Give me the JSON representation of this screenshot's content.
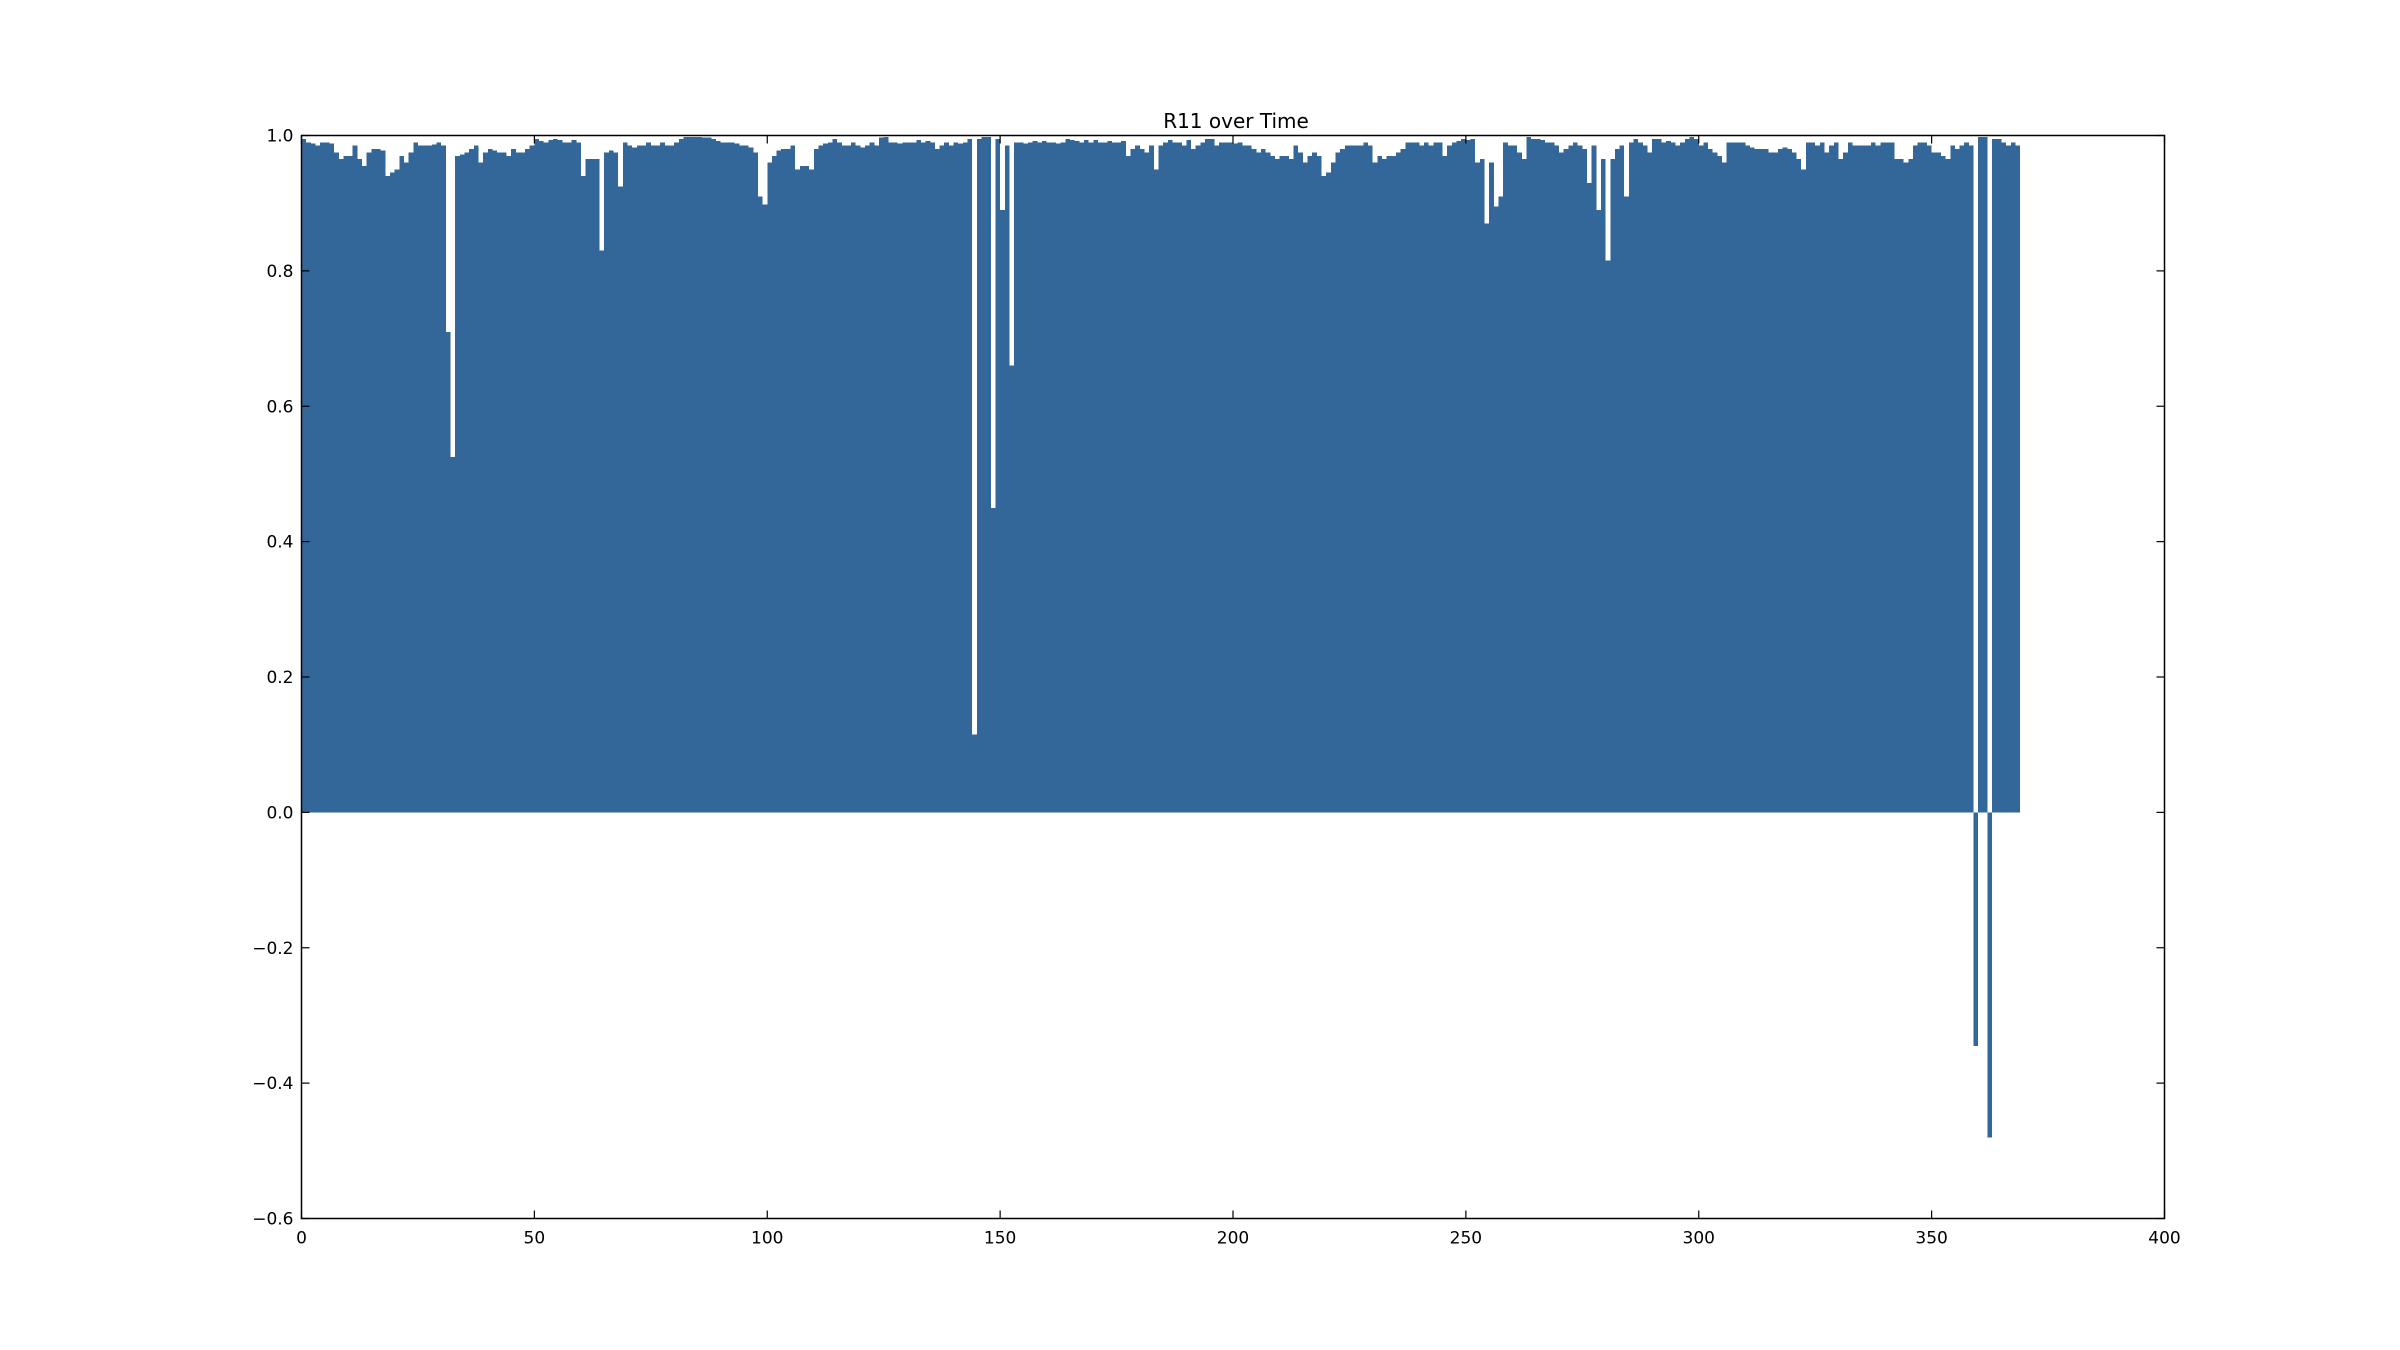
{
  "chart_data": {
    "type": "bar",
    "title": "R11 over Time",
    "xlabel": "",
    "ylabel": "",
    "xlim": [
      0,
      400
    ],
    "ylim": [
      -0.6,
      1.0
    ],
    "grid": false,
    "bar_width": 1,
    "bar_color": "#336699",
    "x_ticks": [
      0,
      50,
      100,
      150,
      200,
      250,
      300,
      350,
      400
    ],
    "y_ticks": [
      1.0,
      0.8,
      0.6,
      0.4,
      0.2,
      0.0,
      -0.2,
      -0.4,
      -0.6
    ],
    "x_tick_labels": [
      "0",
      "50",
      "100",
      "150",
      "200",
      "250",
      "300",
      "350",
      "400"
    ],
    "y_tick_labels": [
      "1.0",
      "0.8",
      "0.6",
      "0.4",
      "0.2",
      "0.0",
      "−0.2",
      "−0.4",
      "−0.6"
    ],
    "values": [
      0.995,
      0.99,
      0.988,
      0.985,
      0.99,
      0.99,
      0.988,
      0.975,
      0.965,
      0.97,
      0.97,
      0.985,
      0.965,
      0.955,
      0.975,
      0.98,
      0.98,
      0.978,
      0.94,
      0.945,
      0.95,
      0.97,
      0.96,
      0.975,
      0.99,
      0.985,
      0.985,
      0.985,
      0.987,
      0.99,
      0.985,
      0.71,
      0.525,
      0.97,
      0.972,
      0.975,
      0.98,
      0.985,
      0.96,
      0.975,
      0.98,
      0.978,
      0.975,
      0.975,
      0.97,
      0.98,
      0.975,
      0.975,
      0.98,
      0.985,
      0.995,
      0.992,
      0.99,
      0.993,
      0.995,
      0.993,
      0.99,
      0.99,
      0.993,
      0.99,
      0.94,
      0.965,
      0.965,
      0.965,
      0.83,
      0.975,
      0.978,
      0.975,
      0.925,
      0.99,
      0.985,
      0.982,
      0.985,
      0.985,
      0.99,
      0.985,
      0.985,
      0.99,
      0.985,
      0.985,
      0.99,
      0.995,
      0.998,
      0.998,
      0.998,
      0.998,
      0.997,
      0.997,
      0.995,
      0.992,
      0.99,
      0.99,
      0.99,
      0.988,
      0.985,
      0.985,
      0.982,
      0.975,
      0.91,
      0.898,
      0.96,
      0.97,
      0.978,
      0.98,
      0.98,
      0.985,
      0.95,
      0.955,
      0.955,
      0.95,
      0.98,
      0.985,
      0.988,
      0.99,
      0.995,
      0.99,
      0.985,
      0.985,
      0.99,
      0.985,
      0.982,
      0.985,
      0.99,
      0.985,
      0.997,
      0.998,
      0.99,
      0.99,
      0.988,
      0.99,
      0.99,
      0.99,
      0.993,
      0.99,
      0.992,
      0.99,
      0.98,
      0.985,
      0.99,
      0.985,
      0.99,
      0.988,
      0.99,
      0.995,
      0.115,
      0.995,
      0.998,
      0.998,
      0.45,
      0.995,
      0.89,
      0.985,
      0.66,
      0.99,
      0.99,
      0.988,
      0.99,
      0.992,
      0.99,
      0.992,
      0.99,
      0.99,
      0.988,
      0.99,
      0.995,
      0.993,
      0.992,
      0.99,
      0.993,
      0.99,
      0.993,
      0.99,
      0.99,
      0.992,
      0.99,
      0.99,
      0.992,
      0.97,
      0.98,
      0.985,
      0.98,
      0.975,
      0.985,
      0.95,
      0.985,
      0.99,
      0.993,
      0.99,
      0.99,
      0.985,
      0.993,
      0.98,
      0.985,
      0.99,
      0.995,
      0.995,
      0.985,
      0.99,
      0.99,
      0.99,
      0.988,
      0.99,
      0.985,
      0.985,
      0.98,
      0.975,
      0.98,
      0.975,
      0.97,
      0.965,
      0.97,
      0.97,
      0.965,
      0.985,
      0.975,
      0.96,
      0.97,
      0.975,
      0.97,
      0.94,
      0.945,
      0.96,
      0.975,
      0.98,
      0.985,
      0.985,
      0.985,
      0.985,
      0.99,
      0.985,
      0.96,
      0.97,
      0.965,
      0.97,
      0.97,
      0.975,
      0.98,
      0.99,
      0.99,
      0.99,
      0.985,
      0.99,
      0.985,
      0.99,
      0.99,
      0.97,
      0.985,
      0.99,
      0.992,
      0.995,
      0.993,
      0.995,
      0.96,
      0.965,
      0.87,
      0.96,
      0.895,
      0.91,
      0.99,
      0.985,
      0.985,
      0.975,
      0.965,
      0.998,
      0.995,
      0.995,
      0.993,
      0.99,
      0.99,
      0.985,
      0.975,
      0.98,
      0.985,
      0.99,
      0.985,
      0.98,
      0.93,
      0.985,
      0.89,
      0.965,
      0.815,
      0.965,
      0.98,
      0.985,
      0.91,
      0.99,
      0.995,
      0.99,
      0.985,
      0.975,
      0.995,
      0.995,
      0.99,
      0.992,
      0.99,
      0.985,
      0.99,
      0.995,
      0.998,
      0.995,
      0.985,
      0.99,
      0.98,
      0.975,
      0.97,
      0.96,
      0.99,
      0.99,
      0.99,
      0.99,
      0.985,
      0.982,
      0.98,
      0.98,
      0.98,
      0.975,
      0.975,
      0.98,
      0.982,
      0.98,
      0.975,
      0.965,
      0.95,
      0.99,
      0.99,
      0.985,
      0.99,
      0.975,
      0.985,
      0.99,
      0.965,
      0.975,
      0.99,
      0.985,
      0.985,
      0.985,
      0.985,
      0.99,
      0.985,
      0.99,
      0.99,
      0.99,
      0.965,
      0.965,
      0.96,
      0.965,
      0.985,
      0.99,
      0.99,
      0.985,
      0.975,
      0.975,
      0.97,
      0.965,
      0.985,
      0.98,
      0.985,
      0.99,
      0.985,
      -0.345,
      0.998,
      0.998,
      -0.48,
      0.995,
      0.995,
      0.99,
      0.985,
      0.99,
      0.985
    ]
  }
}
